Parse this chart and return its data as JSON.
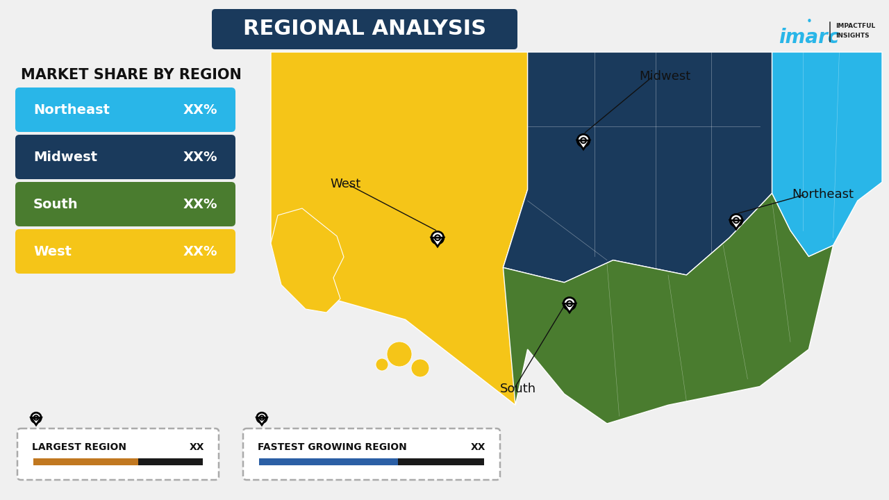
{
  "title": "REGIONAL ANALYSIS",
  "title_bg_color": "#1a3a5c",
  "title_text_color": "#ffffff",
  "background_color": "#f0f0f0",
  "subtitle": "MARKET SHARE BY REGION",
  "regions": [
    "Northeast",
    "Midwest",
    "South",
    "West"
  ],
  "region_colors": [
    "#29b6e8",
    "#1a3a5c",
    "#4a7c2f",
    "#f5c518"
  ],
  "region_values": [
    "XX%",
    "XX%",
    "XX%",
    "XX%"
  ],
  "legend_largest_label": "LARGEST REGION",
  "legend_largest_value": "XX",
  "legend_largest_bar_color": "#c17820",
  "legend_fastest_label": "FASTEST GROWING REGION",
  "legend_fastest_value": "XX",
  "legend_fastest_bar_color": "#2b5fa5",
  "bar_dark_color": "#1a1a1a",
  "imarc_color": "#29b6e8",
  "map_west_color": "#f5c518",
  "map_midwest_color": "#1a3a5c",
  "map_south_color": "#4a7c2f",
  "map_northeast_color": "#29b6e8",
  "map_border_color": "#ffffff",
  "pin_color_map": "#ffffff",
  "pin_color_bottom": "#111111",
  "label_color": "#111111",
  "leader_line_color": "#111111",
  "title_fontsize": 22,
  "subtitle_fontsize": 15,
  "region_label_fontsize": 14,
  "map_label_fontsize": 13
}
